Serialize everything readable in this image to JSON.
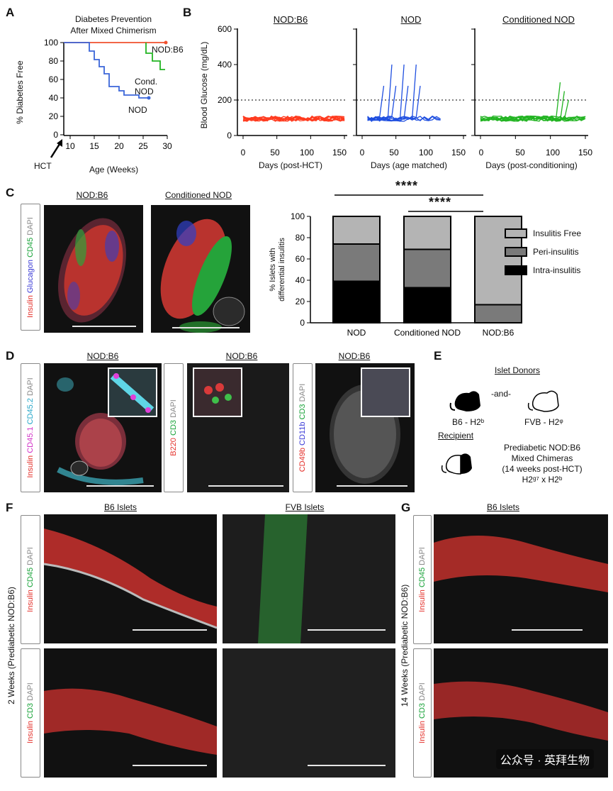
{
  "panels": {
    "A": "A",
    "B": "B",
    "C": "C",
    "D": "D",
    "E": "E",
    "F": "F",
    "G": "G"
  },
  "panelA": {
    "title_line1": "Diabetes Prevention",
    "title_line2": "After Mixed Chimerism",
    "ylabel": "% Diabetes Free",
    "xlabel": "Age (Weeks)",
    "hct_label": "HCT",
    "yticks": [
      "0",
      "20",
      "40",
      "60",
      "80",
      "100"
    ],
    "xticks": [
      "10",
      "15",
      "20",
      "25",
      "30"
    ],
    "labels": {
      "nodb6": "NOD:B6",
      "cond": "Cond. NOD",
      "nod": "NOD"
    },
    "colors": {
      "nodb6": "#f0502e",
      "cond": "#22b422",
      "nod": "#3b66d9"
    }
  },
  "panelB": {
    "ylabel": "Blood Glucose (mg/dL)",
    "yticks": [
      "0",
      "200",
      "400",
      "600"
    ],
    "xticks": [
      "0",
      "50",
      "100",
      "150"
    ],
    "plots": [
      {
        "title": "NOD:B6",
        "xlabel": "Days (post-HCT)",
        "color": "#ff3b1f"
      },
      {
        "title": "NOD",
        "xlabel": "Days (age matched)",
        "color": "#1f4fe0"
      },
      {
        "title": "Conditioned NOD",
        "xlabel": "Days (post-conditioning)",
        "color": "#22b422"
      }
    ]
  },
  "panelC": {
    "img1_title": "NOD:B6",
    "img2_title": "Conditioned NOD",
    "stain": [
      "Insulin",
      "Glucagon",
      "CD45",
      "DAPI"
    ],
    "sig1": "****",
    "sig2": "****",
    "ylabel_line1": "% Islets with",
    "ylabel_line2": "differential insulitis",
    "yticks": [
      "0",
      "20",
      "40",
      "60",
      "80",
      "100"
    ],
    "legend": [
      "Insulitis Free",
      "Peri-insulitis",
      "Intra-insulitis"
    ],
    "legend_colors": [
      "#b4b4b4",
      "#7a7a7a",
      "#000000"
    ]
  },
  "chart_data": {
    "type": "bar",
    "stacked": true,
    "categories": [
      "NOD",
      "Conditioned NOD",
      "NOD:B6"
    ],
    "series": [
      {
        "name": "Intra-insulitis",
        "values": [
          39,
          33,
          0
        ]
      },
      {
        "name": "Peri-insulitis",
        "values": [
          35,
          36,
          17
        ]
      },
      {
        "name": "Insulitis Free",
        "values": [
          26,
          31,
          83
        ]
      }
    ],
    "ylabel": "% Islets with differential insulitis",
    "ylim": [
      0,
      100
    ]
  },
  "panelD": {
    "titles": [
      "NOD:B6",
      "NOD:B6",
      "NOD:B6"
    ],
    "stain1": [
      "Insulin",
      "CD45.1",
      "CD45.2",
      "DAPI"
    ],
    "stain2": [
      "B220",
      "CD3",
      "DAPI"
    ],
    "stain3": [
      "CD49b",
      "CD11b",
      "CD3",
      "DAPI"
    ]
  },
  "panelE": {
    "donors_title": "Islet Donors",
    "b6": "B6 - H2ᵇ",
    "and": "-and-",
    "fvb": "FVB - H2ᵠ",
    "recipient_title": "Recipient",
    "recipient_lines": [
      "Prediabetic NOD:B6",
      "Mixed Chimeras",
      "(14 weeks post-HCT)",
      "H2ᵍ⁷ x H2ᵇ"
    ]
  },
  "panelF": {
    "col1": "B6 Islets",
    "col2": "FVB Islets",
    "side": "2 Weeks (Prediabetic NOD:B6)",
    "stain_top": [
      "Insulin",
      "CD45",
      "DAPI"
    ],
    "stain_bottom": [
      "Insulin",
      "CD3",
      "DAPI"
    ]
  },
  "panelG": {
    "col": "B6 Islets",
    "side": "14 Weeks (Prediabetic NOD:B6)",
    "stain_top": [
      "Insulin",
      "CD45",
      "DAPI"
    ],
    "stain_bottom": [
      "Insulin",
      "CD3",
      "DAPI"
    ]
  },
  "watermark": "公众号 · 英拜生物"
}
